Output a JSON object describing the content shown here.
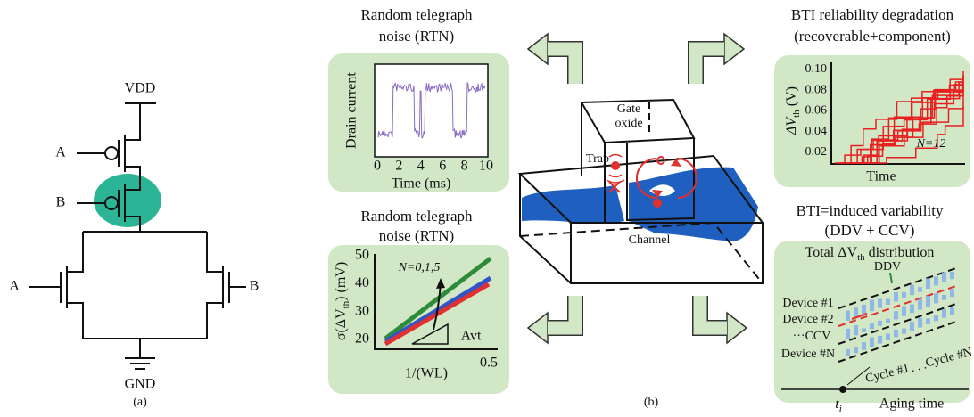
{
  "circuit": {
    "vdd": "VDD",
    "gnd": "GND",
    "inputs": [
      "A",
      "B",
      "A",
      "B"
    ],
    "caption": "(a)"
  },
  "device": {
    "gate_oxide": [
      "Gate",
      "oxide"
    ],
    "trap": "Trap",
    "channel": "Channel",
    "caption": "(b)"
  },
  "panels": [
    {
      "title": [
        "Random telegraph",
        "noise (RTN)"
      ],
      "ylabel": "Drain current",
      "xlabel": "Time (ms)",
      "xticks": [
        "0",
        "2",
        "4",
        "6",
        "8",
        "10"
      ]
    },
    {
      "title": [
        "Random telegraph",
        "noise (RTN)"
      ],
      "ylabel": {
        "pre": "σ(ΔV",
        "sub": "th",
        "post": ") (mV)"
      },
      "xlabel": "1/(WL)",
      "yticks": [
        "50",
        "40",
        "30",
        "20"
      ],
      "xtick": "0.5",
      "annotation": "N=0,1,5",
      "slope": "Avt"
    },
    {
      "title": [
        "BTI reliability degradation",
        "(recoverable+component)"
      ],
      "ylabel": {
        "pre": "ΔV",
        "sub": "th",
        "post": " (V)"
      },
      "xlabel": "Time",
      "yticks": [
        "0.10",
        "0.08",
        "0.06",
        "0.04",
        "0.02"
      ],
      "annotation": "N=12"
    },
    {
      "title": [
        "BTI=induced variability",
        "(DDV + CCV)"
      ],
      "heading": {
        "pre": "Total ΔV",
        "sub": "th",
        "post": " distribution"
      },
      "labels": [
        "DDV",
        "Device #1",
        "Device #2",
        "···CCV",
        "Device #N",
        "Cycle #1",
        ". . .",
        "Cycle #N"
      ],
      "time_point": {
        "pre": "t",
        "sub": "i"
      },
      "xlabel": "Aging time"
    }
  ]
}
